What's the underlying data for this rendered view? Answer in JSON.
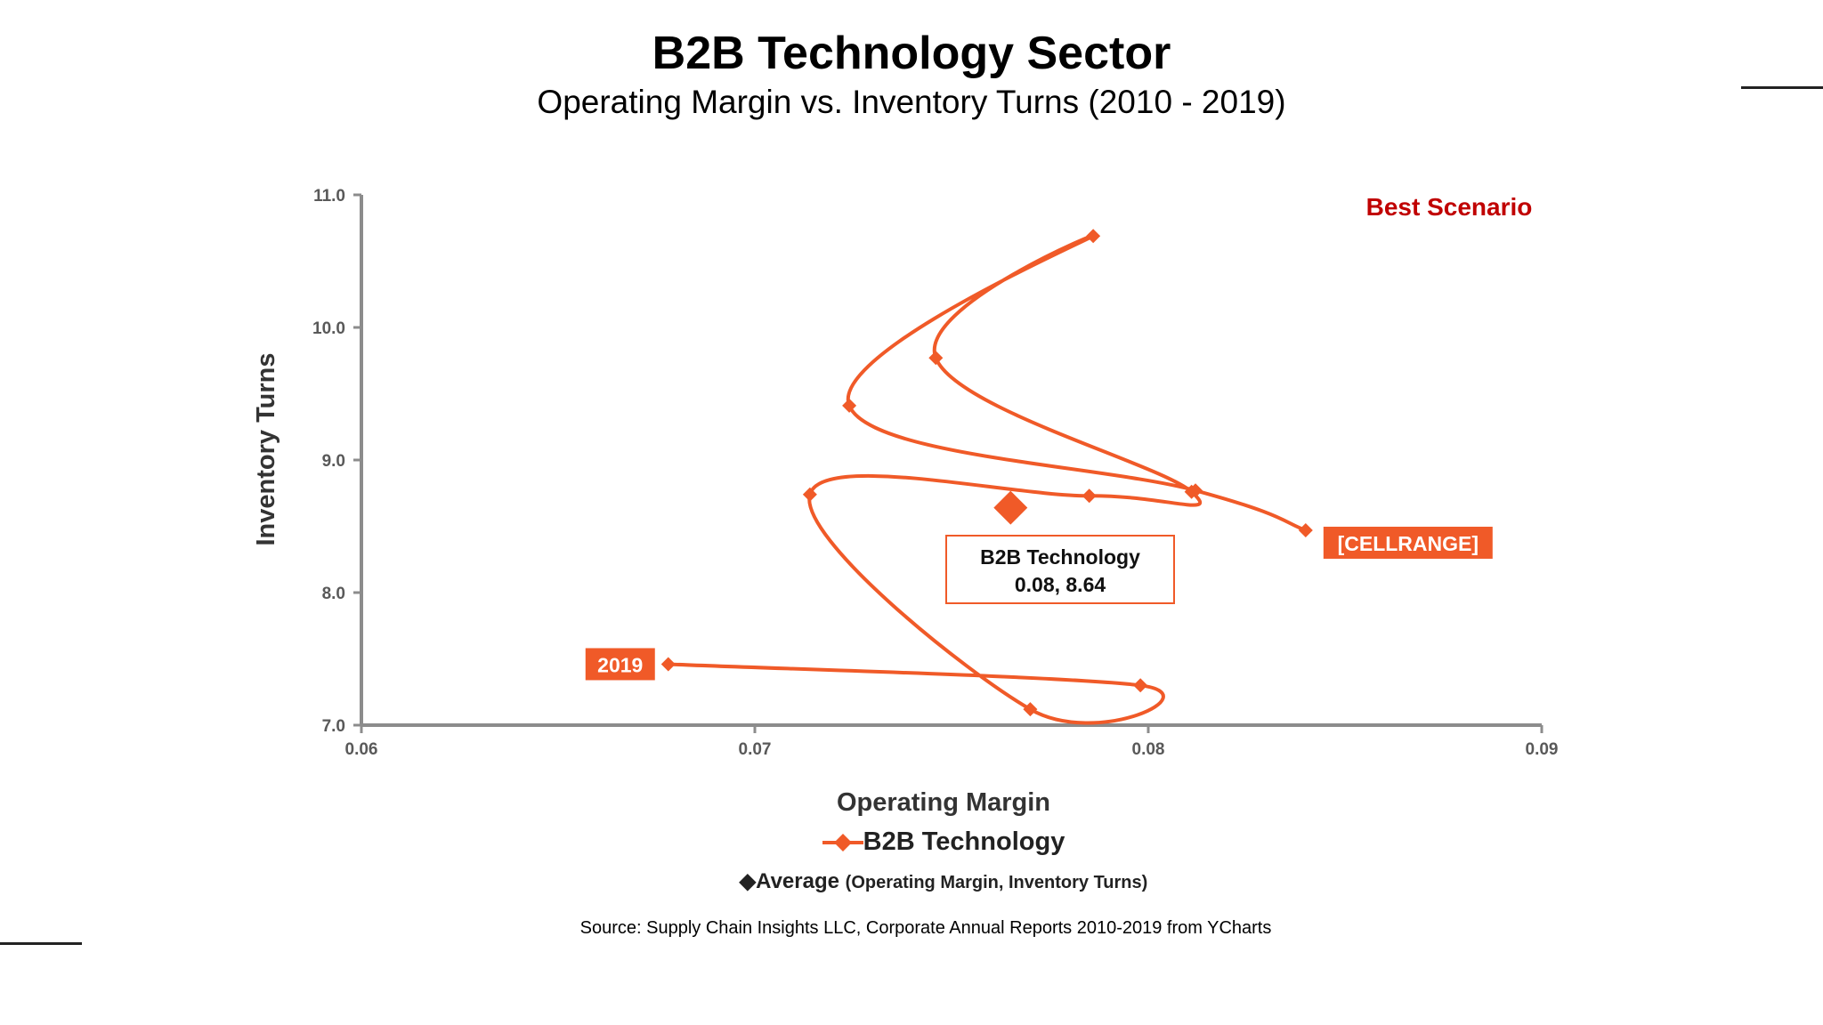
{
  "page": {
    "title": "B2B Technology Sector",
    "subtitle": "Operating Margin vs. Inventory Turns  (2010 - 2019)",
    "source": "Source:  Supply Chain Insights LLC, Corporate Annual Reports 2010-2019 from YCharts"
  },
  "chart_data": {
    "type": "scatter",
    "xlabel": "Operating Margin",
    "ylabel": "Inventory Turns",
    "xlim": [
      0.06,
      0.09
    ],
    "ylim": [
      7.0,
      11.0
    ],
    "x_ticks": [
      "0.06",
      "0.07",
      "0.08",
      "0.09"
    ],
    "y_ticks": [
      "7.0",
      "8.0",
      "9.0",
      "10.0",
      "11.0"
    ],
    "grid": false,
    "series": [
      {
        "name": "B2B Technology",
        "color": "#f05a28",
        "smoothed": true,
        "points": [
          {
            "x": 0.084,
            "y": 8.47
          },
          {
            "x": 0.0812,
            "y": 8.77
          },
          {
            "x": 0.0724,
            "y": 9.41
          },
          {
            "x": 0.0786,
            "y": 10.69
          },
          {
            "x": 0.0746,
            "y": 9.77
          },
          {
            "x": 0.0811,
            "y": 8.76
          },
          {
            "x": 0.0785,
            "y": 8.73
          },
          {
            "x": 0.0714,
            "y": 8.74
          },
          {
            "x": 0.077,
            "y": 7.12
          },
          {
            "x": 0.0798,
            "y": 7.3
          },
          {
            "x": 0.0678,
            "y": 7.46
          }
        ]
      }
    ],
    "average": {
      "x": 0.0765,
      "y": 8.64,
      "color": "#f05a28"
    },
    "annotations": {
      "corner_label": "Best Scenario",
      "corner_color": "#c00000",
      "start_label": "[CELLRANGE]",
      "end_label": "2019",
      "average_callout_line1": "B2B Technology",
      "average_callout_line2": "0.08, 8.64"
    },
    "legend": {
      "series_label": "B2B Technology",
      "average_label": "Average",
      "average_detail": "(Operating Margin, Inventory Turns)"
    }
  }
}
